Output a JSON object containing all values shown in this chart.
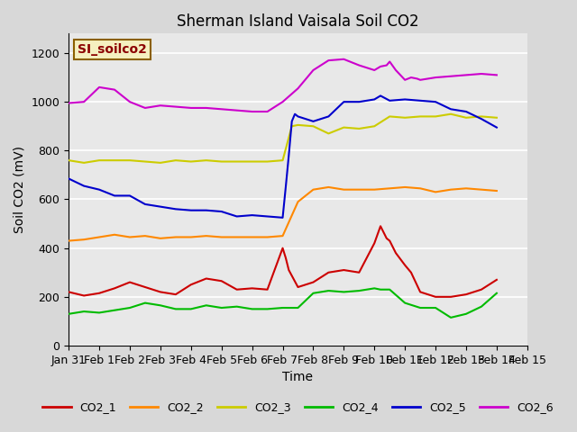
{
  "title": "Sherman Island Vaisala Soil CO2",
  "xlabel": "Time",
  "ylabel": "Soil CO2 (mV)",
  "watermark": "SI_soilco2",
  "ylim": [
    0,
    1280
  ],
  "yticks": [
    0,
    200,
    400,
    600,
    800,
    1000,
    1200
  ],
  "xtick_labels": [
    "Jan 31",
    "Feb 1",
    "Feb 2",
    "Feb 3",
    "Feb 4",
    "Feb 5",
    "Feb 6",
    "Feb 7",
    "Feb 8",
    "Feb 9",
    "Feb 10",
    "Feb 11",
    "Feb 12",
    "Feb 13",
    "Feb 14",
    "Feb 15"
  ],
  "colors": {
    "CO2_1": "#cc0000",
    "CO2_2": "#ff8800",
    "CO2_3": "#cccc00",
    "CO2_4": "#00bb00",
    "CO2_5": "#0000cc",
    "CO2_6": "#cc00cc"
  },
  "series": {
    "CO2_1": {
      "x": [
        0,
        0.5,
        1,
        1.5,
        2,
        2.5,
        3,
        3.5,
        4,
        4.5,
        5,
        5.5,
        6,
        6.5,
        7,
        7.1,
        7.2,
        7.5,
        8,
        8.5,
        9,
        9.5,
        10,
        10.2,
        10.4,
        10.5,
        10.7,
        11,
        11.2,
        11.5,
        12,
        12.5,
        13,
        13.5,
        14
      ],
      "y": [
        220,
        205,
        215,
        235,
        260,
        240,
        220,
        210,
        250,
        275,
        265,
        230,
        235,
        230,
        400,
        360,
        310,
        240,
        260,
        300,
        310,
        300,
        420,
        490,
        440,
        430,
        380,
        330,
        300,
        220,
        200,
        200,
        210,
        230,
        270
      ]
    },
    "CO2_2": {
      "x": [
        0,
        0.5,
        1,
        1.5,
        2,
        2.5,
        3,
        3.5,
        4,
        4.5,
        5,
        5.5,
        6,
        6.5,
        7,
        7.5,
        8,
        8.5,
        9,
        9.5,
        10,
        10.5,
        11,
        11.5,
        12,
        12.5,
        13,
        13.5,
        14
      ],
      "y": [
        430,
        435,
        445,
        455,
        445,
        450,
        440,
        445,
        445,
        450,
        445,
        445,
        445,
        445,
        450,
        590,
        640,
        650,
        640,
        640,
        640,
        645,
        650,
        645,
        630,
        640,
        645,
        640,
        635
      ]
    },
    "CO2_3": {
      "x": [
        0,
        0.5,
        1,
        1.5,
        2,
        2.5,
        3,
        3.5,
        4,
        4.5,
        5,
        5.5,
        6,
        6.5,
        7,
        7.3,
        7.5,
        8,
        8.5,
        9,
        9.5,
        10,
        10.5,
        11,
        11.5,
        12,
        12.5,
        13,
        13.5,
        14
      ],
      "y": [
        760,
        750,
        760,
        760,
        760,
        755,
        750,
        760,
        755,
        760,
        755,
        755,
        755,
        755,
        760,
        900,
        905,
        900,
        870,
        895,
        890,
        900,
        940,
        935,
        940,
        940,
        950,
        935,
        940,
        935
      ]
    },
    "CO2_4": {
      "x": [
        0,
        0.5,
        1,
        1.5,
        2,
        2.5,
        3,
        3.5,
        4,
        4.5,
        5,
        5.5,
        6,
        6.5,
        7,
        7.5,
        8,
        8.5,
        9,
        9.5,
        10,
        10.2,
        10.5,
        11,
        11.5,
        12,
        12.5,
        13,
        13.5,
        14
      ],
      "y": [
        130,
        140,
        135,
        145,
        155,
        175,
        165,
        150,
        150,
        165,
        155,
        160,
        150,
        150,
        155,
        155,
        215,
        225,
        220,
        225,
        235,
        230,
        230,
        175,
        155,
        155,
        115,
        130,
        160,
        215
      ]
    },
    "CO2_5": {
      "x": [
        0,
        0.5,
        1,
        1.5,
        2,
        2.5,
        3,
        3.5,
        4,
        4.5,
        5,
        5.5,
        6,
        6.5,
        7,
        7.1,
        7.2,
        7.3,
        7.4,
        7.5,
        8,
        8.5,
        9,
        9.5,
        10,
        10.2,
        10.5,
        11,
        11.5,
        12,
        12.5,
        13,
        13.5,
        14
      ],
      "y": [
        685,
        655,
        640,
        615,
        615,
        580,
        570,
        560,
        555,
        555,
        550,
        530,
        535,
        530,
        525,
        650,
        780,
        920,
        950,
        940,
        920,
        940,
        1000,
        1000,
        1010,
        1025,
        1005,
        1010,
        1005,
        1000,
        970,
        960,
        930,
        895
      ]
    },
    "CO2_6": {
      "x": [
        0,
        0.5,
        1,
        1.5,
        2,
        2.5,
        3,
        3.5,
        4,
        4.5,
        5,
        5.5,
        6,
        6.5,
        7,
        7.5,
        8,
        8.5,
        9,
        9.5,
        10,
        10.2,
        10.4,
        10.5,
        10.7,
        11,
        11.2,
        11.4,
        11.5,
        12,
        12.5,
        13,
        13.5,
        14
      ],
      "y": [
        995,
        1000,
        1060,
        1050,
        1000,
        975,
        985,
        980,
        975,
        975,
        970,
        965,
        960,
        960,
        1000,
        1055,
        1130,
        1170,
        1175,
        1150,
        1130,
        1145,
        1150,
        1165,
        1130,
        1090,
        1100,
        1095,
        1090,
        1100,
        1105,
        1110,
        1115,
        1110
      ]
    }
  }
}
